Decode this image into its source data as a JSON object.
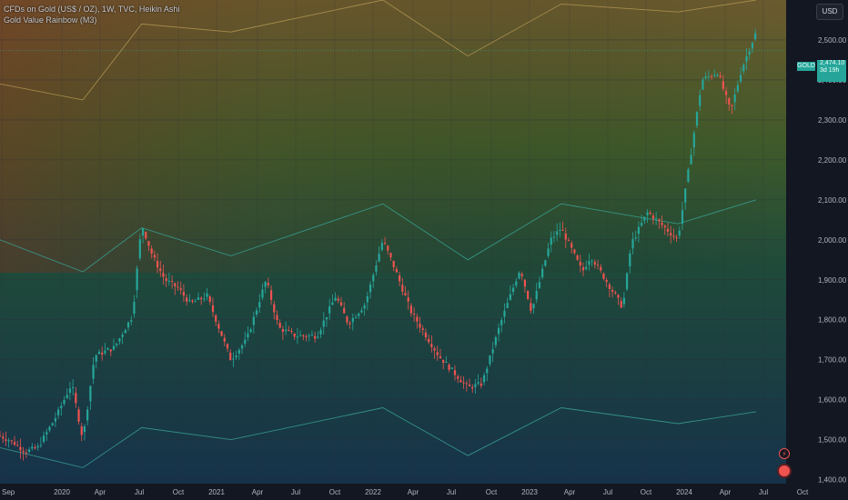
{
  "legend": {
    "line1": "CFDs on Gold (US$ / OZ), 1W, TVC, Heikin Ashi",
    "line2": "Gold Value Rainbow (M3)"
  },
  "currency_button": "USD",
  "price_tag": {
    "symbol": "GOLD",
    "value": "2,474.10",
    "countdown": "3d 19h"
  },
  "colors": {
    "background": "#131722",
    "up": "#26a69a",
    "down": "#ef5350",
    "band_line": "#3aa69a",
    "upper_line": "#b59a55",
    "axis_text": "#b2b5be",
    "grid": "#2a2e39"
  },
  "icons": [
    "flash-icon",
    "record-icon"
  ],
  "chart_data": {
    "type": "candlestick",
    "x_axis_labels": [
      "Sep",
      "2020",
      "Apr",
      "Jul",
      "Oct",
      "2021",
      "Apr",
      "Jul",
      "Oct",
      "2022",
      "Apr",
      "Jul",
      "Oct",
      "2023",
      "Apr",
      "Jul",
      "Oct",
      "2024",
      "Apr",
      "Jul",
      "Oct"
    ],
    "y_ticks": [
      1400,
      1500,
      1600,
      1700,
      1800,
      1900,
      2000,
      2100,
      2200,
      2300,
      2400,
      2500
    ],
    "y_tick_labels": [
      "1,400.00",
      "1,500.00",
      "1,600.00",
      "1,700.00",
      "1,800.00",
      "1,900.00",
      "2,000.00",
      "2,100.00",
      "2,200.00",
      "2,300.00",
      "2,400.00",
      "2,500.00"
    ],
    "ylim": [
      1390,
      2600
    ],
    "xlim": [
      "2019-09-01",
      "2024-10-31"
    ],
    "last_price": 2474.1,
    "weekly_close_path": [
      {
        "date": "2019-09-01",
        "value": 1510
      },
      {
        "date": "2019-10-01",
        "value": 1495
      },
      {
        "date": "2019-11-01",
        "value": 1470
      },
      {
        "date": "2019-12-01",
        "value": 1480
      },
      {
        "date": "2020-01-15",
        "value": 1560
      },
      {
        "date": "2020-02-20",
        "value": 1640
      },
      {
        "date": "2020-03-18",
        "value": 1500
      },
      {
        "date": "2020-04-15",
        "value": 1710
      },
      {
        "date": "2020-06-01",
        "value": 1730
      },
      {
        "date": "2020-07-15",
        "value": 1810
      },
      {
        "date": "2020-08-06",
        "value": 2040
      },
      {
        "date": "2020-09-01",
        "value": 1960
      },
      {
        "date": "2020-10-01",
        "value": 1900
      },
      {
        "date": "2020-11-01",
        "value": 1880
      },
      {
        "date": "2020-12-01",
        "value": 1840
      },
      {
        "date": "2021-01-10",
        "value": 1860
      },
      {
        "date": "2021-03-08",
        "value": 1700
      },
      {
        "date": "2021-04-15",
        "value": 1750
      },
      {
        "date": "2021-06-01",
        "value": 1900
      },
      {
        "date": "2021-07-01",
        "value": 1780
      },
      {
        "date": "2021-08-10",
        "value": 1760
      },
      {
        "date": "2021-10-01",
        "value": 1760
      },
      {
        "date": "2021-11-15",
        "value": 1860
      },
      {
        "date": "2021-12-15",
        "value": 1790
      },
      {
        "date": "2022-01-25",
        "value": 1840
      },
      {
        "date": "2022-03-08",
        "value": 2000
      },
      {
        "date": "2022-04-01",
        "value": 1940
      },
      {
        "date": "2022-05-15",
        "value": 1820
      },
      {
        "date": "2022-07-20",
        "value": 1710
      },
      {
        "date": "2022-09-28",
        "value": 1630
      },
      {
        "date": "2022-11-01",
        "value": 1640
      },
      {
        "date": "2022-12-15",
        "value": 1790
      },
      {
        "date": "2023-02-01",
        "value": 1930
      },
      {
        "date": "2023-02-28",
        "value": 1820
      },
      {
        "date": "2023-04-15",
        "value": 2000
      },
      {
        "date": "2023-05-10",
        "value": 2030
      },
      {
        "date": "2023-06-30",
        "value": 1920
      },
      {
        "date": "2023-07-20",
        "value": 1960
      },
      {
        "date": "2023-10-05",
        "value": 1830
      },
      {
        "date": "2023-10-25",
        "value": 1990
      },
      {
        "date": "2023-12-04",
        "value": 2070
      },
      {
        "date": "2024-02-14",
        "value": 2000
      },
      {
        "date": "2024-03-10",
        "value": 2170
      },
      {
        "date": "2024-04-12",
        "value": 2400
      },
      {
        "date": "2024-05-20",
        "value": 2420
      },
      {
        "date": "2024-06-20",
        "value": 2320
      },
      {
        "date": "2024-07-17",
        "value": 2430
      },
      {
        "date": "2024-08-20",
        "value": 2520
      }
    ],
    "rainbow_bands": [
      {
        "name": "upper",
        "points": [
          {
            "date": "2019-09-01",
            "value": 2390
          },
          {
            "date": "2020-03-18",
            "value": 2350
          },
          {
            "date": "2020-08-06",
            "value": 2540
          },
          {
            "date": "2021-03-08",
            "value": 2520
          },
          {
            "date": "2022-03-08",
            "value": 2600
          },
          {
            "date": "2022-09-28",
            "value": 2460
          },
          {
            "date": "2023-05-10",
            "value": 2590
          },
          {
            "date": "2024-02-14",
            "value": 2570
          },
          {
            "date": "2024-08-20",
            "value": 2600
          }
        ]
      },
      {
        "name": "middle",
        "points": [
          {
            "date": "2019-09-01",
            "value": 2000
          },
          {
            "date": "2020-03-18",
            "value": 1920
          },
          {
            "date": "2020-08-06",
            "value": 2030
          },
          {
            "date": "2021-03-08",
            "value": 1960
          },
          {
            "date": "2022-03-08",
            "value": 2090
          },
          {
            "date": "2022-09-28",
            "value": 1950
          },
          {
            "date": "2023-05-10",
            "value": 2090
          },
          {
            "date": "2024-02-14",
            "value": 2040
          },
          {
            "date": "2024-08-20",
            "value": 2100
          }
        ]
      },
      {
        "name": "lower",
        "points": [
          {
            "date": "2019-09-01",
            "value": 1480
          },
          {
            "date": "2020-03-18",
            "value": 1430
          },
          {
            "date": "2020-08-06",
            "value": 1530
          },
          {
            "date": "2021-03-08",
            "value": 1500
          },
          {
            "date": "2022-03-08",
            "value": 1580
          },
          {
            "date": "2022-09-28",
            "value": 1460
          },
          {
            "date": "2023-05-10",
            "value": 1580
          },
          {
            "date": "2024-02-14",
            "value": 1540
          },
          {
            "date": "2024-08-20",
            "value": 1570
          }
        ]
      }
    ]
  }
}
